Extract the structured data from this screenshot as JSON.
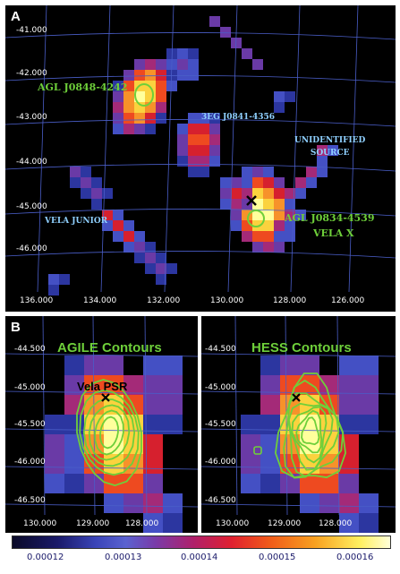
{
  "panel_a": {
    "letter": "A",
    "dec_ticks": [
      "-41.000",
      "-42.000",
      "-43.000",
      "-44.000",
      "-45.000",
      "-46.000"
    ],
    "ra_ticks": [
      "136.000",
      "134.000",
      "132.000",
      "130.000",
      "128.000",
      "126.000"
    ],
    "sources": {
      "agl_j0848": "AGL J0848-4242",
      "eg_j0841": "3EG J0841-4356",
      "unidentified": "UNIDENTIFIED\nSOURCE",
      "vela_junior": "VELA JUNIOR",
      "agl_j0834": "AGL J0834-4539",
      "vela_x": "VELA X"
    }
  },
  "panel_b_left": {
    "letter": "B",
    "title": "AGILE Contours",
    "pulsar": "Vela PSR",
    "dec_ticks": [
      "-44.500",
      "-45.000",
      "-45.500",
      "-46.000",
      "-46.500"
    ],
    "ra_ticks": [
      "130.000",
      "129.000",
      "128.000"
    ]
  },
  "panel_b_right": {
    "title": "HESS Contours",
    "dec_ticks": [
      "-44.500",
      "-45.000",
      "-45.500",
      "-46.000",
      "-46.500"
    ],
    "ra_ticks": [
      "130.000",
      "129.000",
      "128.000"
    ]
  },
  "colorbar": {
    "ticks": [
      "0.00012",
      "0.00013",
      "0.00014",
      "0.00015",
      "0.00016"
    ]
  },
  "colors": {
    "background": "#000000",
    "grid": "#4a5ec8",
    "contour": "#6ecf3a",
    "label_blue": "#8fd0ff",
    "marker": "#000000"
  }
}
